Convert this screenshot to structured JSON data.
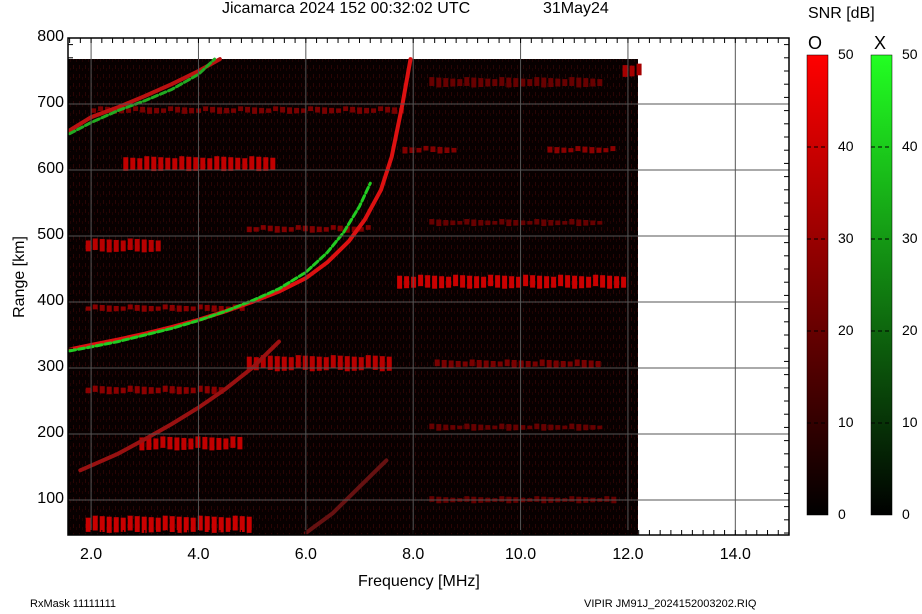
{
  "header": {
    "title": "Jicamarca 2024 152 00:32:02 UTC",
    "date": "31May24"
  },
  "footer": {
    "rxmask": "RxMask 11111111",
    "file": "VIPIR  JM91J_2024152003202.RIQ"
  },
  "colorbar": {
    "title": "SNR [dB]",
    "o_label": "O",
    "x_label": "X",
    "o_color_top": "#ff0000",
    "x_color_top": "#22ff22",
    "ticks": [
      "50",
      "40",
      "30",
      "20",
      "10",
      "0"
    ]
  },
  "axes": {
    "xlabel": "Frequency [MHz]",
    "ylabel": "Range [km]",
    "xticks": [
      "2.0",
      "4.0",
      "6.0",
      "8.0",
      "10.0",
      "12.0",
      "14.0"
    ],
    "yticks": [
      "800",
      "700",
      "600",
      "500",
      "400",
      "300",
      "200",
      "100"
    ]
  },
  "chart_data": {
    "type": "heatmap",
    "title": "Jicamarca 2024 152 00:32:02 UTC  31May24",
    "xlabel": "Frequency [MHz]",
    "ylabel": "Range [km]",
    "xlim": [
      1.57,
      15.0
    ],
    "ylim": [
      47,
      800
    ],
    "data_extent": {
      "freq": [
        1.57,
        12.2
      ],
      "range": [
        47,
        768
      ]
    },
    "xticks": [
      2,
      4,
      6,
      8,
      10,
      12,
      14
    ],
    "yticks": [
      100,
      200,
      300,
      400,
      500,
      600,
      700,
      800
    ],
    "grid": true,
    "colorscale": {
      "name": "SNR [dB]",
      "range": [
        0,
        50
      ],
      "O_mode": "red",
      "X_mode": "green"
    },
    "traces": [
      {
        "name": "F-layer O-mode trace",
        "color": "#dd1111",
        "points": [
          [
            1.6,
            328
          ],
          [
            2.0,
            335
          ],
          [
            2.5,
            343
          ],
          [
            3.0,
            352
          ],
          [
            3.5,
            362
          ],
          [
            4.0,
            373
          ],
          [
            4.5,
            386
          ],
          [
            5.0,
            400
          ],
          [
            5.5,
            416
          ],
          [
            6.0,
            436
          ],
          [
            6.4,
            460
          ],
          [
            6.8,
            492
          ],
          [
            7.1,
            525
          ],
          [
            7.4,
            570
          ],
          [
            7.6,
            620
          ],
          [
            7.8,
            700
          ],
          [
            7.95,
            768
          ]
        ]
      },
      {
        "name": "F-layer X-mode trace",
        "color": "#22cc22",
        "points": [
          [
            1.6,
            326
          ],
          [
            2.0,
            332
          ],
          [
            2.5,
            340
          ],
          [
            3.0,
            350
          ],
          [
            3.5,
            360
          ],
          [
            4.0,
            372
          ],
          [
            4.5,
            386
          ],
          [
            5.0,
            402
          ],
          [
            5.5,
            420
          ],
          [
            6.0,
            445
          ],
          [
            6.4,
            475
          ],
          [
            6.7,
            505
          ],
          [
            7.0,
            545
          ],
          [
            7.2,
            580
          ]
        ]
      },
      {
        "name": "Multi-hop O trace",
        "color": "#bb1111",
        "points": [
          [
            1.6,
            660
          ],
          [
            2.0,
            680
          ],
          [
            2.5,
            695
          ],
          [
            3.0,
            712
          ],
          [
            3.5,
            730
          ],
          [
            4.0,
            750
          ],
          [
            4.4,
            768
          ]
        ]
      },
      {
        "name": "Multi-hop X trace",
        "color": "#22aa22",
        "points": [
          [
            1.6,
            655
          ],
          [
            2.0,
            672
          ],
          [
            2.5,
            690
          ],
          [
            3.0,
            705
          ],
          [
            3.5,
            722
          ],
          [
            4.0,
            745
          ],
          [
            4.3,
            768
          ]
        ]
      },
      {
        "name": "Lower oblique trace",
        "color": "#991111",
        "points": [
          [
            1.8,
            145
          ],
          [
            2.5,
            170
          ],
          [
            3.0,
            192
          ],
          [
            3.5,
            215
          ],
          [
            4.0,
            240
          ],
          [
            4.5,
            268
          ],
          [
            5.0,
            300
          ],
          [
            5.5,
            340
          ]
        ]
      },
      {
        "name": "Faint lower trace",
        "color": "#661111",
        "points": [
          [
            6.0,
            50
          ],
          [
            6.5,
            80
          ],
          [
            7.0,
            120
          ],
          [
            7.5,
            160
          ]
        ]
      }
    ],
    "echo_blocks": [
      {
        "f0": 1.9,
        "f1": 4.9,
        "r0": 50,
        "r1": 75,
        "level": 0.9
      },
      {
        "f0": 2.9,
        "f1": 4.8,
        "r0": 175,
        "r1": 195,
        "level": 0.85
      },
      {
        "f0": 1.9,
        "f1": 4.5,
        "r0": 260,
        "r1": 272,
        "level": 0.55
      },
      {
        "f0": 4.9,
        "f1": 7.6,
        "r0": 295,
        "r1": 318,
        "level": 0.8
      },
      {
        "f0": 1.9,
        "f1": 4.8,
        "r0": 385,
        "r1": 395,
        "level": 0.55
      },
      {
        "f0": 7.7,
        "f1": 12.0,
        "r0": 420,
        "r1": 440,
        "level": 0.9
      },
      {
        "f0": 1.9,
        "f1": 3.3,
        "r0": 475,
        "r1": 495,
        "level": 0.8
      },
      {
        "f0": 4.9,
        "f1": 7.2,
        "r0": 505,
        "r1": 515,
        "level": 0.5
      },
      {
        "f0": 2.6,
        "f1": 5.4,
        "r0": 598,
        "r1": 620,
        "level": 0.85
      },
      {
        "f0": 7.8,
        "f1": 8.8,
        "r0": 625,
        "r1": 635,
        "level": 0.5
      },
      {
        "f0": 10.5,
        "f1": 11.8,
        "r0": 625,
        "r1": 635,
        "level": 0.55
      },
      {
        "f0": 2.0,
        "f1": 7.8,
        "r0": 685,
        "r1": 695,
        "level": 0.45
      },
      {
        "f0": 8.4,
        "f1": 11.5,
        "r0": 300,
        "r1": 312,
        "level": 0.45
      },
      {
        "f0": 8.3,
        "f1": 11.8,
        "r0": 95,
        "r1": 105,
        "level": 0.35
      },
      {
        "f0": 8.3,
        "f1": 11.5,
        "r0": 205,
        "r1": 215,
        "level": 0.35
      },
      {
        "f0": 8.3,
        "f1": 11.5,
        "r0": 515,
        "r1": 525,
        "level": 0.35
      },
      {
        "f0": 8.3,
        "f1": 11.5,
        "r0": 725,
        "r1": 740,
        "level": 0.35
      },
      {
        "f0": 11.9,
        "f1": 12.2,
        "r0": 740,
        "r1": 760,
        "level": 0.7
      }
    ]
  }
}
